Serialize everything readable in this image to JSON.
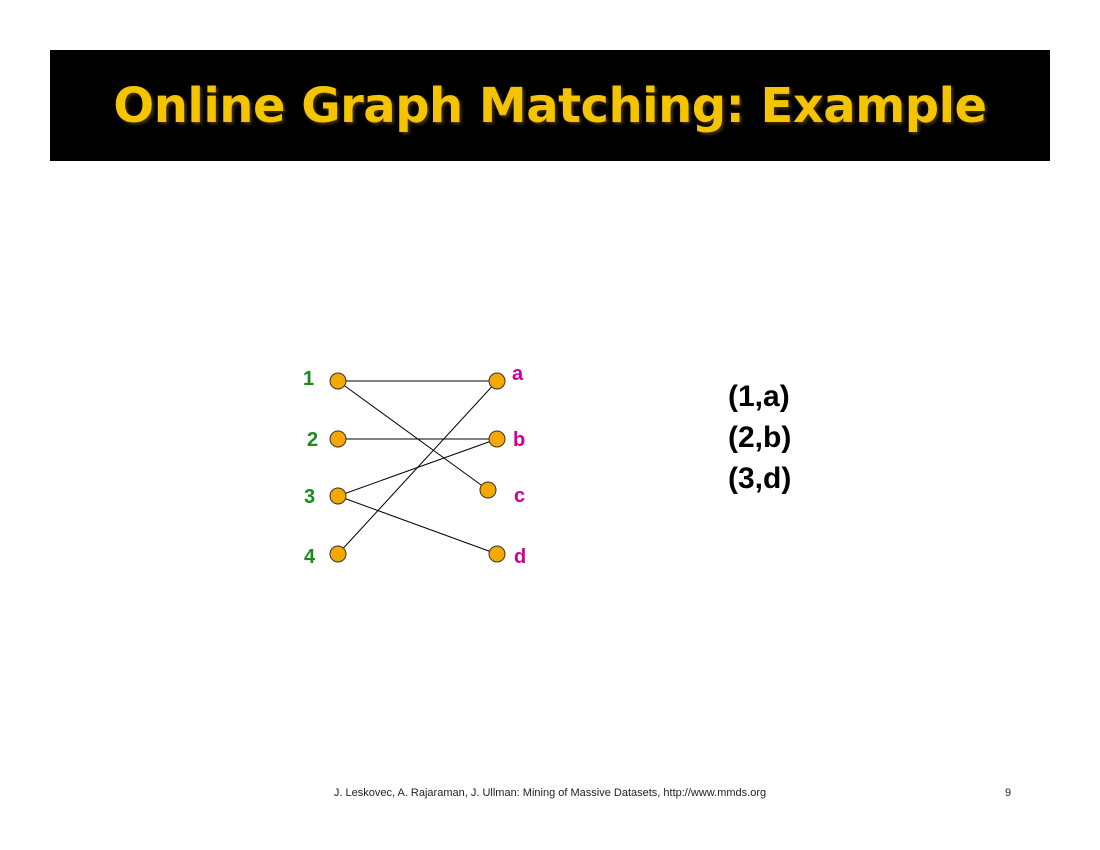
{
  "slide": {
    "title": "Online Graph Matching: Example",
    "footer": "J. Leskovec, A. Rajaraman, J. Ullman: Mining of Massive Datasets, http://www.mmds.org",
    "page_number": "9"
  },
  "graph": {
    "left_nodes": [
      {
        "id": "1",
        "label": "1"
      },
      {
        "id": "2",
        "label": "2"
      },
      {
        "id": "3",
        "label": "3"
      },
      {
        "id": "4",
        "label": "4"
      }
    ],
    "right_nodes": [
      {
        "id": "a",
        "label": "a"
      },
      {
        "id": "b",
        "label": "b"
      },
      {
        "id": "c",
        "label": "c"
      },
      {
        "id": "d",
        "label": "d"
      }
    ],
    "edges": [
      [
        "1",
        "a"
      ],
      [
        "1",
        "c"
      ],
      [
        "2",
        "b"
      ],
      [
        "3",
        "b"
      ],
      [
        "3",
        "d"
      ],
      [
        "4",
        "a"
      ]
    ],
    "colors": {
      "left_label": "#1a8a1a",
      "right_label": "#cc0099",
      "node_fill": "#f5a800"
    }
  },
  "matching": [
    "(1,a)",
    "(2,b)",
    "(3,d)"
  ]
}
